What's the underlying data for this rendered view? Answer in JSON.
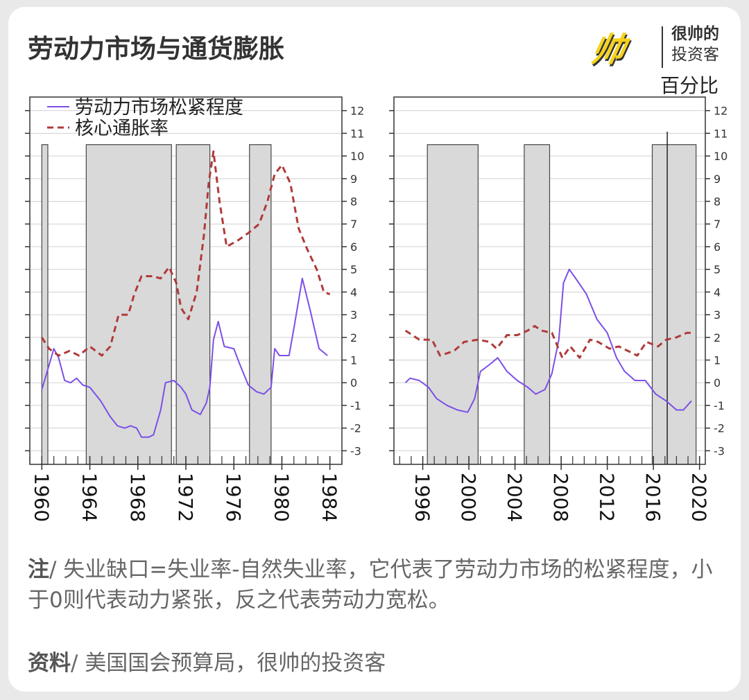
{
  "header": {
    "title": "劳动力市场与通货膨胀",
    "logo": "帅",
    "brand_lines": [
      "很帅的",
      "投资客"
    ],
    "unit": "百分比"
  },
  "chart_data": [
    {
      "type": "line",
      "xlim": [
        1959,
        1985
      ],
      "xticks": [
        1960,
        1964,
        1968,
        1972,
        1976,
        1980,
        1984
      ],
      "ylim": [
        -3.6,
        12.6
      ],
      "yticks": [
        -3,
        -2,
        -1,
        0,
        1,
        2,
        3,
        4,
        5,
        6,
        7,
        8,
        9,
        10,
        11,
        12
      ],
      "grid": true,
      "legend": "top-left",
      "shaded": [
        [
          1960.0,
          1960.5
        ],
        [
          1963.7,
          1970.8
        ],
        [
          1971.2,
          1974.0
        ],
        [
          1977.3,
          1979.1
        ]
      ],
      "shaded_top": 10.5,
      "shaded_color": "#d9d9d9",
      "series": [
        {
          "name": "劳动力市场松紧程度",
          "color": "#7b4fe8",
          "dash": false,
          "x": [
            1960.0,
            1960.4,
            1961.0,
            1961.4,
            1961.9,
            1962.4,
            1962.9,
            1963.4,
            1964.0,
            1964.9,
            1965.7,
            1966.3,
            1966.9,
            1967.4,
            1967.9,
            1968.3,
            1968.9,
            1969.3,
            1969.9,
            1970.3,
            1971.0,
            1971.6,
            1972.0,
            1972.5,
            1973.2,
            1973.7,
            1974.0,
            1974.3,
            1974.7,
            1975.2,
            1976.0,
            1976.5,
            1977.2,
            1977.9,
            1978.5,
            1979.1,
            1979.4,
            1979.8,
            1980.6,
            1981.0,
            1981.7,
            1982.4,
            1983.1,
            1983.8
          ],
          "values": [
            -0.3,
            0.4,
            1.5,
            1.1,
            0.1,
            0,
            0.2,
            -0.1,
            -0.2,
            -0.8,
            -1.5,
            -1.9,
            -2.0,
            -1.9,
            -2.0,
            -2.4,
            -2.4,
            -2.3,
            -1.2,
            0,
            0.1,
            -0.2,
            -0.5,
            -1.2,
            -1.4,
            -0.9,
            -0.2,
            1.9,
            2.7,
            1.6,
            1.5,
            0.8,
            -0.1,
            -0.4,
            -0.5,
            -0.2,
            1.5,
            1.2,
            1.2,
            2.4,
            4.6,
            3.1,
            1.5,
            1.2
          ]
        },
        {
          "name": "核心通胀率",
          "color": "#b03a3a",
          "dash": true,
          "x": [
            1960.0,
            1960.6,
            1961.4,
            1962.3,
            1963.1,
            1964.0,
            1965.0,
            1965.7,
            1966.4,
            1967.2,
            1967.7,
            1968.3,
            1969.2,
            1969.9,
            1970.6,
            1971.2,
            1971.6,
            1972.2,
            1972.9,
            1973.5,
            1973.9,
            1974.3,
            1974.8,
            1975.4,
            1976.4,
            1977.2,
            1978.1,
            1978.8,
            1979.4,
            1980.0,
            1980.7,
            1981.4,
            1982.1,
            1982.9,
            1983.5,
            1984.0
          ],
          "values": [
            2.0,
            1.5,
            1.2,
            1.4,
            1.2,
            1.6,
            1.2,
            1.6,
            3.0,
            3.0,
            3.9,
            4.7,
            4.7,
            4.6,
            5.1,
            4.4,
            3.3,
            2.8,
            4.0,
            6.5,
            8.8,
            10.2,
            8.0,
            6.0,
            6.3,
            6.6,
            7.0,
            8.0,
            9.2,
            9.6,
            8.8,
            6.8,
            5.9,
            5.0,
            4.0,
            3.9
          ]
        }
      ]
    },
    {
      "type": "line",
      "xlim": [
        1993.5,
        2020.5
      ],
      "xticks": [
        1996,
        2000,
        2004,
        2008,
        2012,
        2016,
        2020
      ],
      "ylim": [
        -3.6,
        12.6
      ],
      "yticks": [
        -3,
        -2,
        -1,
        0,
        1,
        2,
        3,
        4,
        5,
        6,
        7,
        8,
        9,
        10,
        11,
        12
      ],
      "grid": true,
      "shaded": [
        [
          1996.4,
          2000.8
        ],
        [
          2004.8,
          2007.0
        ],
        [
          2015.9,
          2019.7
        ]
      ],
      "shaded_top": 10.5,
      "shaded_color": "#d9d9d9",
      "vlines": [
        2017.2
      ],
      "series": [
        {
          "color": "#7b4fe8",
          "dash": false,
          "x": [
            1994.5,
            1994.9,
            1995.7,
            1996.5,
            1997.2,
            1998.1,
            1999.0,
            1999.9,
            2000.5,
            2001.0,
            2001.8,
            2002.5,
            2003.3,
            2004.2,
            2005.1,
            2005.8,
            2006.6,
            2007.2,
            2007.8,
            2008.2,
            2008.7,
            2009.4,
            2010.2,
            2011.1,
            2012.0,
            2012.8,
            2013.5,
            2014.4,
            2015.3,
            2016.2,
            2017.1,
            2018.0,
            2018.6,
            2019.3
          ],
          "values": [
            0,
            0.2,
            0.1,
            -0.2,
            -0.7,
            -1.0,
            -1.2,
            -1.3,
            -0.7,
            0.5,
            0.8,
            1.1,
            0.5,
            0.1,
            -0.2,
            -0.5,
            -0.3,
            0.4,
            1.9,
            4.4,
            5.0,
            4.5,
            3.9,
            2.8,
            2.2,
            1.1,
            0.5,
            0.1,
            0.1,
            -0.5,
            -0.8,
            -1.2,
            -1.2,
            -0.8
          ]
        },
        {
          "color": "#b03a3a",
          "dash": true,
          "x": [
            1994.5,
            1995.7,
            1996.8,
            1997.5,
            1998.7,
            1999.6,
            2000.8,
            2001.8,
            2002.4,
            2003.3,
            2004.2,
            2005.1,
            2005.7,
            2006.3,
            2007.2,
            2008.1,
            2008.8,
            2009.6,
            2010.5,
            2011.2,
            2012.2,
            2013.0,
            2013.8,
            2014.6,
            2015.4,
            2016.4,
            2017.1,
            2018.0,
            2018.9,
            2019.5
          ],
          "values": [
            2.3,
            1.9,
            1.9,
            1.2,
            1.4,
            1.8,
            1.9,
            1.8,
            1.5,
            2.1,
            2.1,
            2.3,
            2.5,
            2.3,
            2.2,
            1.1,
            1.6,
            1.1,
            1.9,
            1.8,
            1.5,
            1.6,
            1.4,
            1.2,
            1.8,
            1.6,
            1.9,
            2.0,
            2.2,
            2.2
          ]
        }
      ]
    }
  ],
  "note": {
    "label": "注",
    "text": "/ 失业缺口=失业率-自然失业率，它代表了劳动力市场的松紧程度，小于0则代表动力紧张，反之代表劳动力宽松。"
  },
  "source": {
    "label": "资料",
    "text": "/ 美国国会预算局，很帅的投资客"
  }
}
